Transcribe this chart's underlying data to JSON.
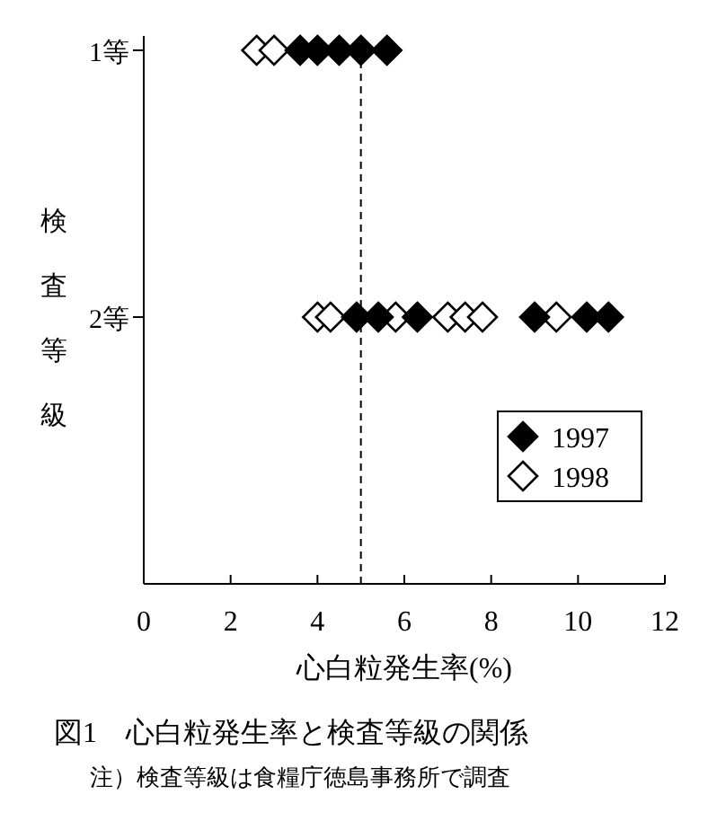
{
  "chart_data": {
    "type": "scatter",
    "orientation": "horizontal",
    "title": "図1　心白粒発生率と検査等級の関係",
    "xlabel": "心白粒発生率(%)",
    "ylabel": "検査等級",
    "annotations": [
      "注）検査等級は食糧庁徳島事務所で調査"
    ],
    "categories": [
      "1等",
      "2等"
    ],
    "xlim": [
      0,
      12
    ],
    "xticks": [
      0,
      2,
      4,
      6,
      8,
      10,
      12
    ],
    "grid": false,
    "legend": "bottom right",
    "marker": "diamond",
    "ref_lines": [
      {
        "axis": "x",
        "value": 5,
        "line_style": "dashed",
        "color": "#000000"
      }
    ],
    "series": [
      {
        "name": "1998",
        "color": "#ffffff",
        "x": [
          "1等",
          "1等",
          "2等",
          "2等",
          "2等",
          "2等",
          "2等",
          "2等",
          "2等"
        ],
        "values": [
          2.6,
          3.0,
          4.0,
          4.3,
          5.8,
          7.0,
          7.4,
          7.8,
          9.5
        ]
      },
      {
        "name": "1997",
        "color": "#000000",
        "x": [
          "1等",
          "1等",
          "1等",
          "1等",
          "1等",
          "2等",
          "2等",
          "2等",
          "2等",
          "2等",
          "2等"
        ],
        "values": [
          3.6,
          4.0,
          4.5,
          5.0,
          5.6,
          4.9,
          5.4,
          6.3,
          9.0,
          10.2,
          10.7
        ]
      }
    ]
  }
}
